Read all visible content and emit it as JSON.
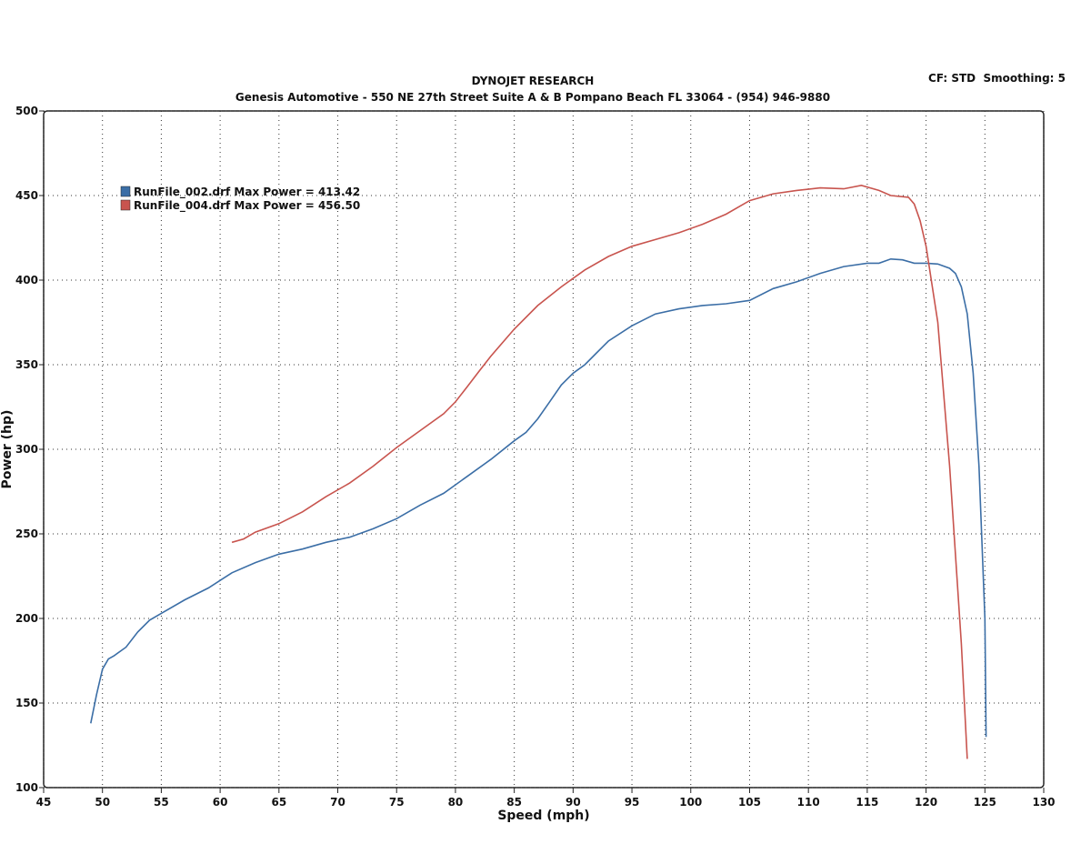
{
  "chart_data": {
    "type": "line",
    "title": "DYNOJET RESEARCH",
    "subtitle": "Genesis Automotive - 550 NE 27th Street Suite A & B Pompano Beach FL 33064 - (954) 946-9880",
    "annotation": "CF: STD  Smoothing: 5",
    "xlabel": "Speed (mph)",
    "ylabel": "Power (hp)",
    "xlim": [
      45,
      130
    ],
    "ylim": [
      100,
      500
    ],
    "xticks": [
      45,
      50,
      55,
      60,
      65,
      70,
      75,
      80,
      85,
      90,
      95,
      100,
      105,
      110,
      115,
      120,
      125,
      130
    ],
    "yticks": [
      100,
      150,
      200,
      250,
      300,
      350,
      400,
      450,
      500
    ],
    "grid": true,
    "legend": "upper left",
    "series": [
      {
        "name": "RunFile_002.drf Max Power = 413.42",
        "color": "#3b6ea6",
        "x": [
          49,
          49.5,
          50,
          50.5,
          51,
          52,
          53,
          54,
          55,
          57,
          59,
          61,
          63,
          65,
          67,
          69,
          71,
          73,
          75,
          77,
          79,
          81,
          83,
          85,
          86,
          87,
          88,
          89,
          90,
          91,
          92,
          93,
          95,
          97,
          99,
          101,
          103,
          105,
          107,
          109,
          111,
          113,
          115,
          116,
          117,
          118,
          119,
          120,
          121,
          122,
          122.5,
          123,
          123.5,
          124,
          124.5,
          125,
          125.1
        ],
        "values": [
          138,
          155,
          170,
          176,
          178,
          183,
          192,
          199,
          203,
          211,
          218,
          227,
          233,
          238,
          241,
          245,
          248,
          253,
          259,
          267,
          274,
          284,
          294,
          305,
          310,
          318,
          328,
          338,
          345,
          350,
          357,
          364,
          373,
          380,
          383,
          385,
          386,
          388,
          395,
          399,
          404,
          408,
          410,
          410,
          412.5,
          412,
          410,
          410,
          409.5,
          407,
          404,
          396,
          380,
          345,
          290,
          200,
          130
        ]
      },
      {
        "name": "RunFile_004.drf Max Power = 456.50",
        "color": "#c8544e",
        "x": [
          61,
          62,
          63,
          65,
          67,
          69,
          71,
          73,
          75,
          77,
          79,
          80,
          81,
          82,
          83,
          85,
          87,
          89,
          91,
          93,
          95,
          97,
          99,
          101,
          103,
          105,
          107,
          109,
          111,
          113,
          114.5,
          116,
          117,
          118.5,
          119,
          119.5,
          120,
          121,
          122,
          123,
          123.5
        ],
        "values": [
          245,
          247,
          251,
          256,
          263,
          272,
          280,
          290,
          301,
          311,
          321,
          328,
          337,
          346,
          355,
          371,
          385,
          396,
          406,
          414,
          420,
          424,
          428,
          433,
          439,
          447,
          451,
          453,
          454.5,
          454,
          456,
          453,
          450,
          449,
          445,
          435,
          420,
          375,
          290,
          185,
          117
        ]
      }
    ]
  }
}
